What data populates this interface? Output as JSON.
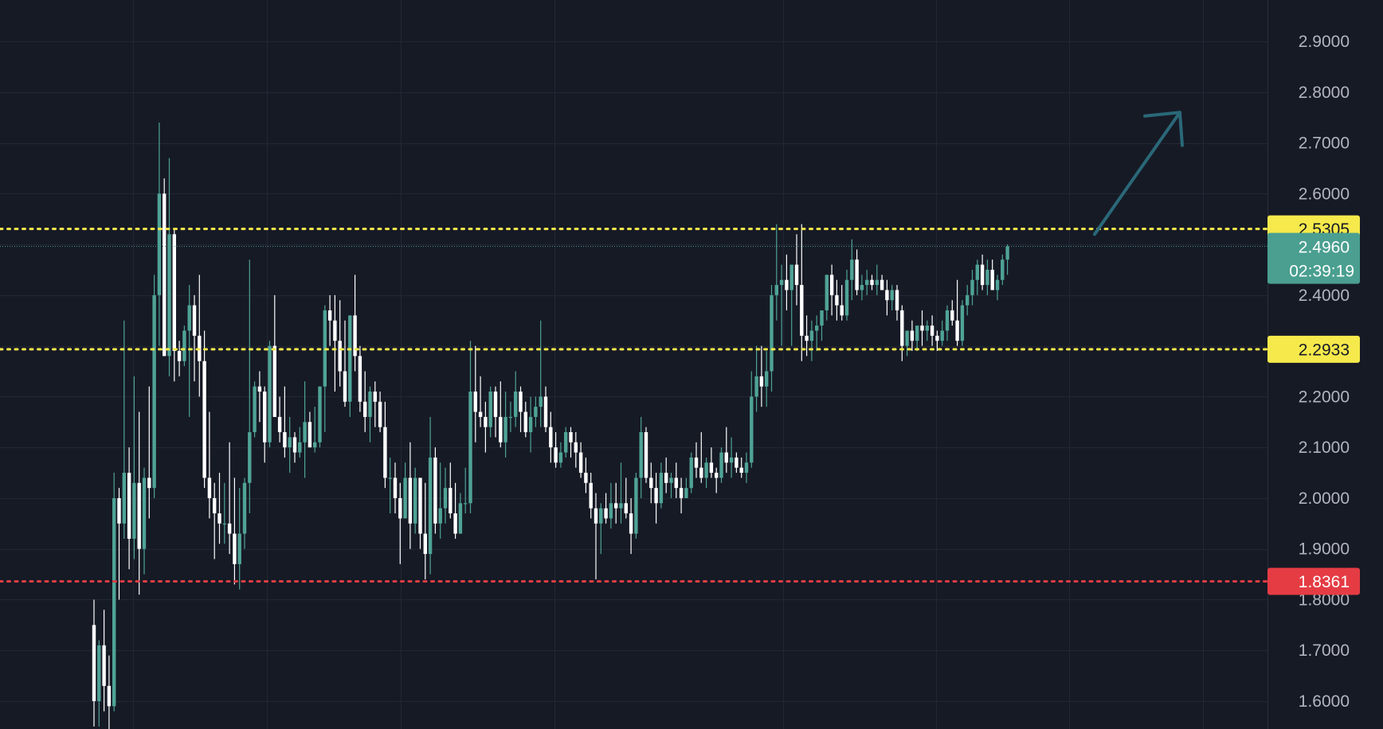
{
  "colors": {
    "background": "#161a25",
    "grid": "#232734",
    "axis_text": "#b2b5be",
    "bull": "#4fa396",
    "bear": "#ffffff",
    "resistance_line": "#f5e94b",
    "stop_line": "#e53c44",
    "current_tag": "#4a9f90",
    "arrow": "#2a6878"
  },
  "chart_data": {
    "type": "candlestick",
    "ylim": [
      1.55,
      2.97
    ],
    "y_ticks": [
      "1.6000",
      "1.7000",
      "1.8000",
      "1.9000",
      "2.0000",
      "2.1000",
      "2.2000",
      "2.3000",
      "2.4000",
      "2.5000",
      "2.6000",
      "2.7000",
      "2.8000",
      "2.9000"
    ],
    "grid": true,
    "horizontal_levels": [
      {
        "value": 2.5305,
        "label": "2.5305",
        "style": "dotted",
        "color": "#f5e94b",
        "text_color": "#161a25"
      },
      {
        "value": 2.2933,
        "label": "2.2933",
        "style": "dotted",
        "color": "#f5e94b",
        "text_color": "#161a25"
      },
      {
        "value": 1.8361,
        "label": "1.8361",
        "style": "dotted",
        "color": "#e53c44",
        "text_color": "#ffffff"
      }
    ],
    "current_price": {
      "value": 2.496,
      "label": "2.4960",
      "countdown": "02:39:19"
    },
    "projection_arrow": {
      "from": 2.52,
      "to": 2.76,
      "direction": "up"
    },
    "candles": [
      [
        1.75,
        1.8,
        1.55,
        1.6
      ],
      [
        1.6,
        1.72,
        1.55,
        1.71
      ],
      [
        1.71,
        1.78,
        1.58,
        1.63
      ],
      [
        1.63,
        1.69,
        1.52,
        1.59
      ],
      [
        1.59,
        2.05,
        1.58,
        2.0
      ],
      [
        2.0,
        2.02,
        1.8,
        1.95
      ],
      [
        1.95,
        2.35,
        1.92,
        2.05
      ],
      [
        2.05,
        2.1,
        1.86,
        1.92
      ],
      [
        1.92,
        2.24,
        1.88,
        2.03
      ],
      [
        2.03,
        2.17,
        1.81,
        1.9
      ],
      [
        1.9,
        2.06,
        1.85,
        2.04
      ],
      [
        2.04,
        2.22,
        1.96,
        2.02
      ],
      [
        2.02,
        2.44,
        2.0,
        2.4
      ],
      [
        2.4,
        2.74,
        2.3,
        2.6
      ],
      [
        2.6,
        2.63,
        2.28,
        2.28
      ],
      [
        2.28,
        2.67,
        2.24,
        2.52
      ],
      [
        2.52,
        2.53,
        2.23,
        2.29
      ],
      [
        2.29,
        2.31,
        2.24,
        2.27
      ],
      [
        2.27,
        2.34,
        2.26,
        2.33
      ],
      [
        2.33,
        2.42,
        2.16,
        2.38
      ],
      [
        2.38,
        2.4,
        2.23,
        2.32
      ],
      [
        2.32,
        2.44,
        2.2,
        2.27
      ],
      [
        2.27,
        2.33,
        2.02,
        2.04
      ],
      [
        2.04,
        2.17,
        1.96,
        2.0
      ],
      [
        2.0,
        2.03,
        1.88,
        1.97
      ],
      [
        1.97,
        2.05,
        1.91,
        1.95
      ],
      [
        1.95,
        2.03,
        1.91,
        1.95
      ],
      [
        1.95,
        2.11,
        1.89,
        1.93
      ],
      [
        1.93,
        2.04,
        1.83,
        1.87
      ],
      [
        1.87,
        2.02,
        1.82,
        1.93
      ],
      [
        1.93,
        2.04,
        1.9,
        2.03
      ],
      [
        2.03,
        2.47,
        1.97,
        2.13
      ],
      [
        2.13,
        2.23,
        2.12,
        2.22
      ],
      [
        2.22,
        2.25,
        2.15,
        2.21
      ],
      [
        2.21,
        2.22,
        2.07,
        2.11
      ],
      [
        2.11,
        2.31,
        2.1,
        2.3
      ],
      [
        2.3,
        2.4,
        2.16,
        2.16
      ],
      [
        2.16,
        2.2,
        2.11,
        2.13
      ],
      [
        2.13,
        2.22,
        2.08,
        2.1
      ],
      [
        2.1,
        2.16,
        2.05,
        2.12
      ],
      [
        2.12,
        2.13,
        2.07,
        2.09
      ],
      [
        2.09,
        2.14,
        2.08,
        2.11
      ],
      [
        2.11,
        2.23,
        2.04,
        2.15
      ],
      [
        2.15,
        2.17,
        2.1,
        2.1
      ],
      [
        2.1,
        2.18,
        2.09,
        2.11
      ],
      [
        2.11,
        2.22,
        2.1,
        2.22
      ],
      [
        2.22,
        2.38,
        2.13,
        2.37
      ],
      [
        2.37,
        2.4,
        2.3,
        2.35
      ],
      [
        2.35,
        2.4,
        2.21,
        2.31
      ],
      [
        2.31,
        2.39,
        2.22,
        2.25
      ],
      [
        2.25,
        2.35,
        2.18,
        2.19
      ],
      [
        2.19,
        2.36,
        2.16,
        2.36
      ],
      [
        2.36,
        2.44,
        2.25,
        2.28
      ],
      [
        2.28,
        2.3,
        2.17,
        2.19
      ],
      [
        2.19,
        2.25,
        2.13,
        2.16
      ],
      [
        2.16,
        2.22,
        2.11,
        2.21
      ],
      [
        2.21,
        2.23,
        2.14,
        2.19
      ],
      [
        2.19,
        2.21,
        2.13,
        2.14
      ],
      [
        2.14,
        2.19,
        2.02,
        2.04
      ],
      [
        2.04,
        2.08,
        1.97,
        2.04
      ],
      [
        2.04,
        2.07,
        1.97,
        2.0
      ],
      [
        2.0,
        2.03,
        1.87,
        1.96
      ],
      [
        1.96,
        2.07,
        1.96,
        2.04
      ],
      [
        2.04,
        2.11,
        1.9,
        1.95
      ],
      [
        1.95,
        2.06,
        1.93,
        2.04
      ],
      [
        2.04,
        2.04,
        1.9,
        1.93
      ],
      [
        1.93,
        2.03,
        1.84,
        1.89
      ],
      [
        1.89,
        2.16,
        1.85,
        2.08
      ],
      [
        2.08,
        2.1,
        1.93,
        1.95
      ],
      [
        1.95,
        2.07,
        1.92,
        1.98
      ],
      [
        1.98,
        2.06,
        1.95,
        2.02
      ],
      [
        2.02,
        2.07,
        1.96,
        1.97
      ],
      [
        1.97,
        2.03,
        1.92,
        1.93
      ],
      [
        1.93,
        2.01,
        1.93,
        1.99
      ],
      [
        1.99,
        2.06,
        1.97,
        1.99
      ],
      [
        1.99,
        2.31,
        1.97,
        2.21
      ],
      [
        2.21,
        2.3,
        2.11,
        2.17
      ],
      [
        2.17,
        2.24,
        2.14,
        2.16
      ],
      [
        2.16,
        2.19,
        2.09,
        2.14
      ],
      [
        2.14,
        2.22,
        2.12,
        2.21
      ],
      [
        2.21,
        2.22,
        2.12,
        2.16
      ],
      [
        2.16,
        2.23,
        2.1,
        2.11
      ],
      [
        2.11,
        2.21,
        2.08,
        2.16
      ],
      [
        2.16,
        2.19,
        2.13,
        2.16
      ],
      [
        2.16,
        2.25,
        2.14,
        2.21
      ],
      [
        2.21,
        2.22,
        2.13,
        2.17
      ],
      [
        2.17,
        2.19,
        2.12,
        2.13
      ],
      [
        2.13,
        2.2,
        2.09,
        2.16
      ],
      [
        2.16,
        2.2,
        2.14,
        2.18
      ],
      [
        2.18,
        2.35,
        2.14,
        2.2
      ],
      [
        2.2,
        2.22,
        2.13,
        2.14
      ],
      [
        2.14,
        2.17,
        2.07,
        2.1
      ],
      [
        2.1,
        2.13,
        2.06,
        2.07
      ],
      [
        2.07,
        2.11,
        2.06,
        2.09
      ],
      [
        2.09,
        2.14,
        2.08,
        2.13
      ],
      [
        2.13,
        2.14,
        2.08,
        2.11
      ],
      [
        2.11,
        2.13,
        2.06,
        2.09
      ],
      [
        2.09,
        2.11,
        2.04,
        2.05
      ],
      [
        2.05,
        2.08,
        2.01,
        2.03
      ],
      [
        2.03,
        2.05,
        1.96,
        1.98
      ],
      [
        1.98,
        2.01,
        1.84,
        1.95
      ],
      [
        1.95,
        1.99,
        1.89,
        1.98
      ],
      [
        1.98,
        2.01,
        1.95,
        1.96
      ],
      [
        1.96,
        2.03,
        1.94,
        1.99
      ],
      [
        1.99,
        2.03,
        1.95,
        1.98
      ],
      [
        1.98,
        2.07,
        1.95,
        1.99
      ],
      [
        1.99,
        2.04,
        1.96,
        1.97
      ],
      [
        1.97,
        2.0,
        1.89,
        1.93
      ],
      [
        1.93,
        2.05,
        1.92,
        2.04
      ],
      [
        2.04,
        2.16,
        2.0,
        2.13
      ],
      [
        2.13,
        2.14,
        2.03,
        2.04
      ],
      [
        2.04,
        2.07,
        1.99,
        2.02
      ],
      [
        2.02,
        2.05,
        1.95,
        1.99
      ],
      [
        1.99,
        2.07,
        1.98,
        2.05
      ],
      [
        2.05,
        2.08,
        2.01,
        2.03
      ],
      [
        2.03,
        2.05,
        2.0,
        2.04
      ],
      [
        2.04,
        2.07,
        2.0,
        2.02
      ],
      [
        2.02,
        2.04,
        1.97,
        2.0
      ],
      [
        2.0,
        2.04,
        2.0,
        2.02
      ],
      [
        2.02,
        2.09,
        2.01,
        2.08
      ],
      [
        2.08,
        2.11,
        2.04,
        2.06
      ],
      [
        2.06,
        2.13,
        2.03,
        2.04
      ],
      [
        2.04,
        2.08,
        2.02,
        2.07
      ],
      [
        2.07,
        2.1,
        2.04,
        2.05
      ],
      [
        2.05,
        2.06,
        2.01,
        2.04
      ],
      [
        2.04,
        2.1,
        2.03,
        2.09
      ],
      [
        2.09,
        2.14,
        2.05,
        2.07
      ],
      [
        2.07,
        2.12,
        2.04,
        2.08
      ],
      [
        2.08,
        2.09,
        2.05,
        2.06
      ],
      [
        2.06,
        2.08,
        2.04,
        2.05
      ],
      [
        2.05,
        2.09,
        2.03,
        2.07
      ],
      [
        2.07,
        2.25,
        2.06,
        2.2
      ],
      [
        2.2,
        2.3,
        2.17,
        2.24
      ],
      [
        2.24,
        2.3,
        2.18,
        2.22
      ],
      [
        2.22,
        2.29,
        2.18,
        2.25
      ],
      [
        2.25,
        2.42,
        2.21,
        2.4
      ],
      [
        2.4,
        2.54,
        2.35,
        2.42
      ],
      [
        2.42,
        2.46,
        2.3,
        2.43
      ],
      [
        2.43,
        2.48,
        2.37,
        2.41
      ],
      [
        2.41,
        2.46,
        2.3,
        2.46
      ],
      [
        2.46,
        2.52,
        2.38,
        2.42
      ],
      [
        2.42,
        2.54,
        2.27,
        2.32
      ],
      [
        2.32,
        2.36,
        2.28,
        2.31
      ],
      [
        2.31,
        2.35,
        2.27,
        2.33
      ],
      [
        2.33,
        2.36,
        2.29,
        2.34
      ],
      [
        2.34,
        2.37,
        2.31,
        2.37
      ],
      [
        2.37,
        2.44,
        2.35,
        2.44
      ],
      [
        2.44,
        2.46,
        2.36,
        2.4
      ],
      [
        2.4,
        2.43,
        2.35,
        2.38
      ],
      [
        2.38,
        2.42,
        2.35,
        2.36
      ],
      [
        2.36,
        2.45,
        2.35,
        2.43
      ],
      [
        2.43,
        2.51,
        2.39,
        2.47
      ],
      [
        2.47,
        2.49,
        2.4,
        2.41
      ],
      [
        2.41,
        2.44,
        2.39,
        2.42
      ],
      [
        2.42,
        2.45,
        2.4,
        2.43
      ],
      [
        2.43,
        2.44,
        2.41,
        2.42
      ],
      [
        2.42,
        2.46,
        2.4,
        2.43
      ],
      [
        2.43,
        2.44,
        2.41,
        2.41
      ],
      [
        2.41,
        2.43,
        2.36,
        2.39
      ],
      [
        2.39,
        2.42,
        2.37,
        2.41
      ],
      [
        2.41,
        2.42,
        2.35,
        2.37
      ],
      [
        2.37,
        2.38,
        2.27,
        2.3
      ],
      [
        2.3,
        2.33,
        2.28,
        2.33
      ],
      [
        2.33,
        2.35,
        2.29,
        2.31
      ],
      [
        2.31,
        2.34,
        2.29,
        2.34
      ],
      [
        2.34,
        2.37,
        2.3,
        2.33
      ],
      [
        2.33,
        2.35,
        2.31,
        2.34
      ],
      [
        2.34,
        2.36,
        2.3,
        2.32
      ],
      [
        2.32,
        2.33,
        2.29,
        2.31
      ],
      [
        2.31,
        2.35,
        2.3,
        2.33
      ],
      [
        2.33,
        2.38,
        2.31,
        2.37
      ],
      [
        2.37,
        2.39,
        2.34,
        2.35
      ],
      [
        2.35,
        2.43,
        2.3,
        2.31
      ],
      [
        2.31,
        2.39,
        2.3,
        2.38
      ],
      [
        2.38,
        2.42,
        2.36,
        2.4
      ],
      [
        2.4,
        2.45,
        2.38,
        2.43
      ],
      [
        2.43,
        2.47,
        2.4,
        2.46
      ],
      [
        2.46,
        2.48,
        2.41,
        2.42
      ],
      [
        2.42,
        2.47,
        2.4,
        2.45
      ],
      [
        2.45,
        2.47,
        2.41,
        2.41
      ],
      [
        2.41,
        2.44,
        2.39,
        2.43
      ],
      [
        2.43,
        2.48,
        2.42,
        2.47
      ],
      [
        2.47,
        2.5,
        2.44,
        2.496
      ]
    ]
  }
}
